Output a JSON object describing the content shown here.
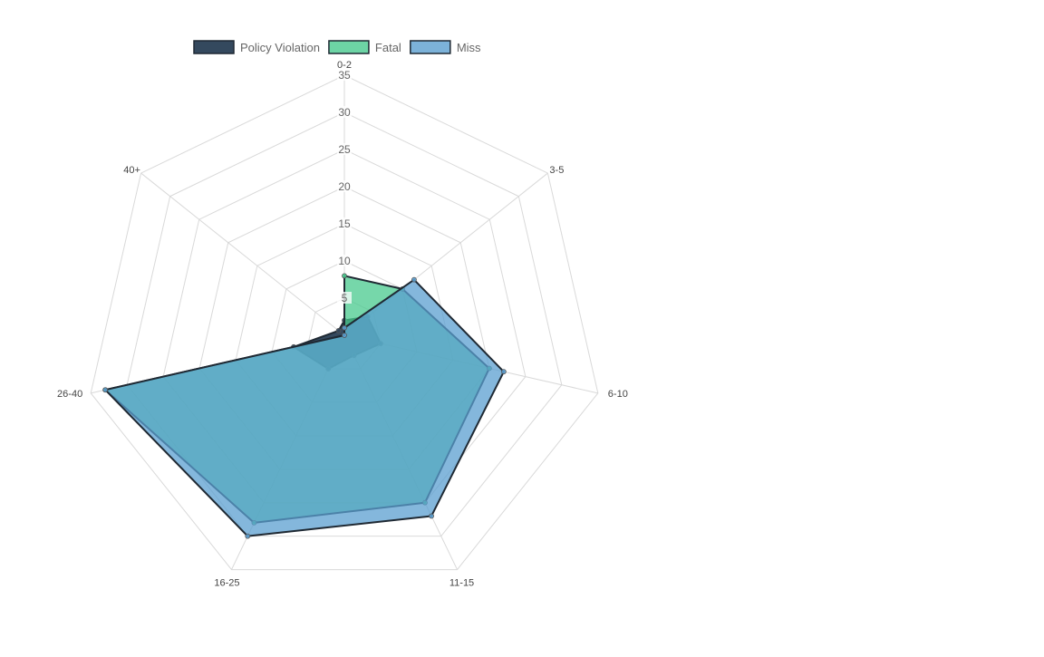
{
  "chart_data": {
    "type": "radar",
    "labels": [
      "0-2",
      "3-5",
      "6-10",
      "11-15",
      "16-25",
      "26-40",
      "40+"
    ],
    "r_range": [
      0,
      35
    ],
    "ticks": [
      "5",
      "10",
      "15",
      "20",
      "25",
      "30",
      "35"
    ],
    "grid": true,
    "legend_position": "top",
    "series": [
      {
        "name": "Policy Violation",
        "color": "#34495e",
        "values": [
          2,
          4,
          5,
          3,
          5,
          7,
          1
        ]
      },
      {
        "name": "Fatal",
        "color": "#48c98e",
        "values": [
          8,
          10,
          20,
          25,
          28,
          33,
          0
        ]
      },
      {
        "name": "Miss",
        "color": "#5b9fd0",
        "values": [
          1,
          12,
          22,
          27,
          30,
          33,
          0
        ]
      }
    ]
  }
}
